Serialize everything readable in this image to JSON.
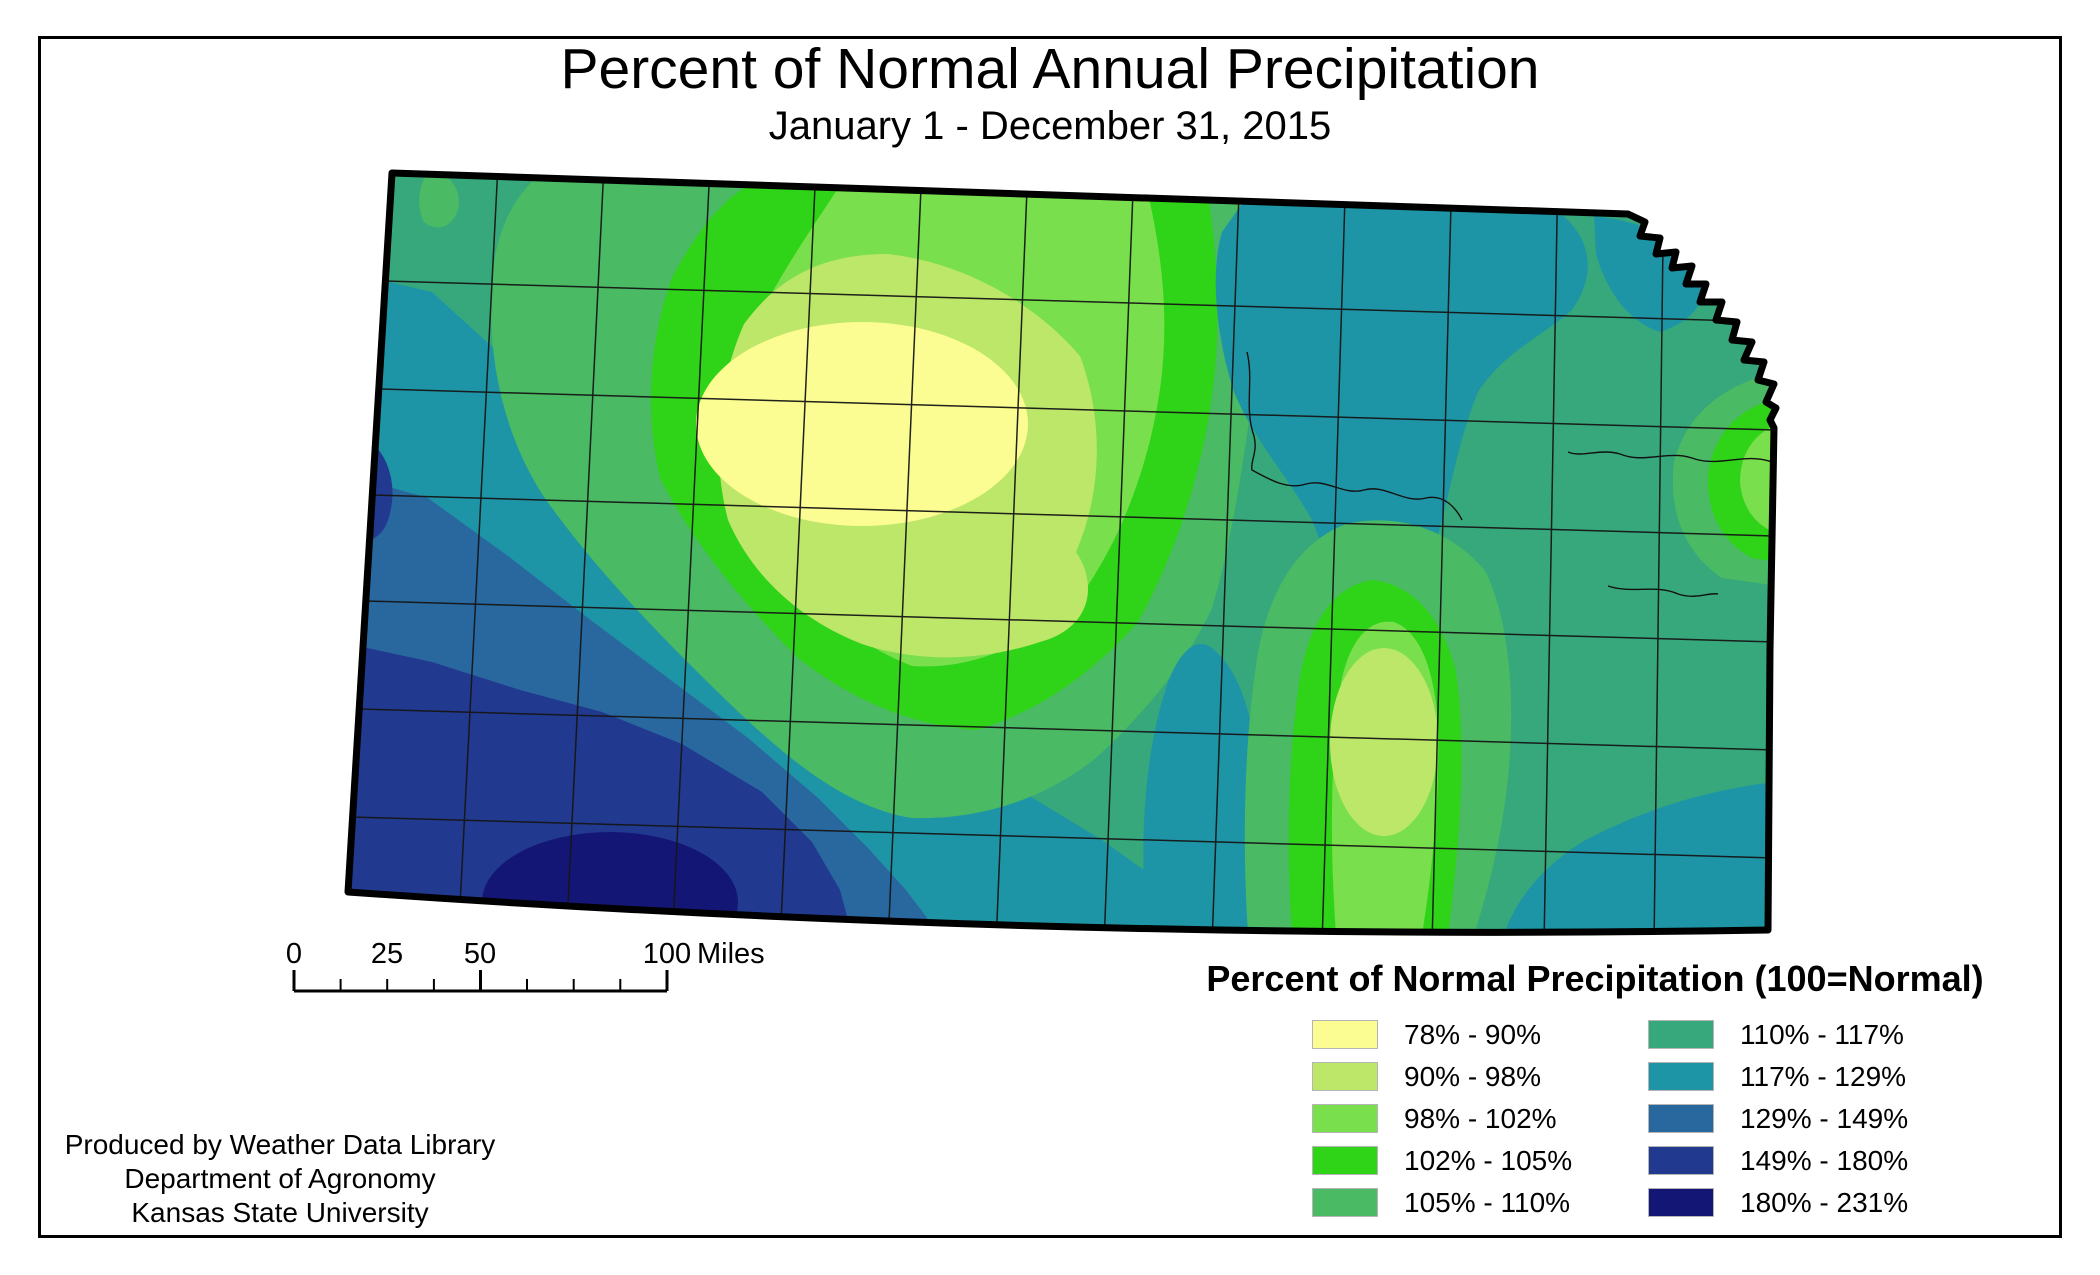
{
  "title": {
    "main": "Percent of Normal Annual Precipitation",
    "subtitle": "January 1 - December 31, 2015"
  },
  "scalebar": {
    "labels": [
      "0",
      "25",
      "50",
      "100"
    ],
    "unit": "Miles"
  },
  "legend": {
    "title": "Percent of Normal Precipitation (100=Normal)",
    "items": [
      {
        "key": "78-90",
        "label": "78% - 90%",
        "color": "#FBFC91"
      },
      {
        "key": "90-98",
        "label": "90% - 98%",
        "color": "#BDE768"
      },
      {
        "key": "98-102",
        "label": "98% - 102%",
        "color": "#79DF4C"
      },
      {
        "key": "102-105",
        "label": "102% - 105%",
        "color": "#2FD317"
      },
      {
        "key": "105-110",
        "label": "105% - 110%",
        "color": "#4ABA64"
      },
      {
        "key": "110-117",
        "label": "110% - 117%",
        "color": "#37A87C"
      },
      {
        "key": "117-129",
        "label": "117% - 129%",
        "color": "#1E95A6"
      },
      {
        "key": "129-149",
        "label": "129% - 149%",
        "color": "#28689F"
      },
      {
        "key": "149-180",
        "label": "149% - 180%",
        "color": "#21398F"
      },
      {
        "key": "180-231",
        "label": "180% - 231%",
        "color": "#141676"
      }
    ]
  },
  "credit": {
    "lines": [
      "Produced by Weather Data Library",
      "Department of Agronomy",
      "Kansas State University"
    ]
  },
  "map": {
    "region": "Kansas",
    "base_key": "110-117",
    "border_color": "#000000"
  }
}
